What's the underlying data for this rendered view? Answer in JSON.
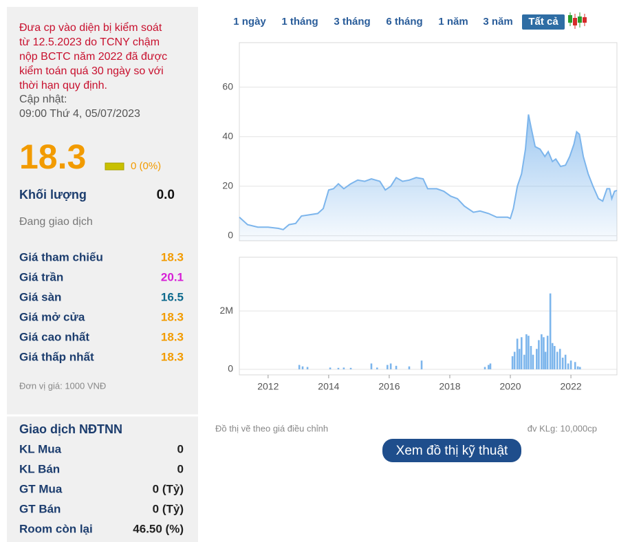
{
  "notice_lines": [
    "Đưa cp vào diện bị kiểm soát",
    "từ 12.5.2023 do TCNY chậm",
    "nộp BCTC năm 2022 đã được",
    "kiểm toán quá 30 ngày so với",
    "thời hạn quy định."
  ],
  "update_label": "Cập nhật:",
  "update_time": "09:00 Thứ 4, 05/07/2023",
  "price": "18.3",
  "change": "0 (0%)",
  "volume_label": "Khối lượng",
  "volume_value": "0.0",
  "status": "Đang giao dịch",
  "price_rows": [
    {
      "label": "Giá tham chiếu",
      "value": "18.3",
      "color": "#f29b00"
    },
    {
      "label": "Giá trần",
      "value": "20.1",
      "color": "#d61fd6"
    },
    {
      "label": "Giá sàn",
      "value": "16.5",
      "color": "#0e6a8e"
    },
    {
      "label": "Giá mở cửa",
      "value": "18.3",
      "color": "#f29b00"
    },
    {
      "label": "Giá cao nhất",
      "value": "18.3",
      "color": "#f29b00"
    },
    {
      "label": "Giá thấp nhất",
      "value": "18.3",
      "color": "#f29b00"
    }
  ],
  "unit_note": "Đơn vị giá: 1000 VNĐ",
  "foreign_title": "Giao dịch NĐTNN",
  "foreign_rows": [
    {
      "label": "KL Mua",
      "value": "0"
    },
    {
      "label": "KL Bán",
      "value": "0"
    },
    {
      "label": "GT Mua",
      "value": "0 (Tỷ)"
    },
    {
      "label": "GT Bán",
      "value": "0 (Tỷ)"
    },
    {
      "label": "Room còn lại",
      "value": "46.50 (%)"
    }
  ],
  "tabs": [
    "1 ngày",
    "1 tháng",
    "3 tháng",
    "6 tháng",
    "1 năm",
    "3 năm",
    "Tất cả"
  ],
  "selected_tab": 6,
  "chart_note": "Đồ thị vẽ theo giá điều chỉnh",
  "volume_unit_note": "đv KLg: 10,000cp",
  "button": "Xem đồ thị kỹ thuật",
  "chart_data": [
    {
      "type": "area",
      "color": "#7cb5ec",
      "grid": true,
      "xlim": [
        2011.05,
        2023.52
      ],
      "ylim": [
        -2,
        78
      ],
      "yticks": [
        0,
        20,
        40,
        60
      ],
      "x": [
        2011.05,
        2011.32,
        2011.66,
        2012.0,
        2012.34,
        2012.5,
        2012.69,
        2012.91,
        2013.1,
        2013.37,
        2013.64,
        2013.82,
        2014.0,
        2014.16,
        2014.32,
        2014.5,
        2014.73,
        2014.96,
        2015.19,
        2015.41,
        2015.69,
        2015.87,
        2016.05,
        2016.23,
        2016.44,
        2016.66,
        2016.89,
        2017.12,
        2017.27,
        2017.57,
        2017.8,
        2018.03,
        2018.25,
        2018.48,
        2018.78,
        2019.0,
        2019.28,
        2019.55,
        2019.91,
        2020.0,
        2020.1,
        2020.23,
        2020.37,
        2020.5,
        2020.6,
        2020.68,
        2020.82,
        2020.98,
        2021.14,
        2021.25,
        2021.39,
        2021.5,
        2021.66,
        2021.82,
        2021.96,
        2022.1,
        2022.19,
        2022.28,
        2022.41,
        2022.57,
        2022.73,
        2022.91,
        2023.05,
        2023.19,
        2023.28,
        2023.35,
        2023.44,
        2023.52
      ],
      "values": [
        7.5,
        4.5,
        3.5,
        3.5,
        3,
        2.5,
        4.5,
        5,
        8,
        8.5,
        9,
        11,
        18.5,
        19,
        21,
        19,
        21,
        22.5,
        22,
        23,
        22,
        18.5,
        20,
        23.5,
        22,
        22.5,
        23.5,
        23,
        19,
        19,
        18,
        16,
        15,
        12,
        9.5,
        10,
        9,
        7.5,
        7.5,
        7,
        11,
        20,
        25,
        35,
        49,
        44,
        36,
        35,
        32,
        34,
        30,
        31,
        28,
        28.5,
        32,
        37,
        42,
        41,
        32,
        25,
        20,
        15,
        14,
        19,
        19,
        15,
        18,
        18.3
      ]
    },
    {
      "type": "bar",
      "color": "#7cb5ec",
      "grid": true,
      "xlim": [
        2011.05,
        2023.52
      ],
      "xticks": [
        2012,
        2014,
        2016,
        2018,
        2020,
        2022
      ],
      "ylim": [
        -190000,
        3840000
      ],
      "yticks": [
        0,
        {
          "value": 2000000,
          "label": "2M"
        }
      ],
      "x": [
        2013.03,
        2013.14,
        2013.3,
        2014.05,
        2014.32,
        2014.5,
        2014.73,
        2015.41,
        2015.6,
        2015.94,
        2016.05,
        2016.23,
        2016.66,
        2017.07,
        2019.16,
        2019.28,
        2019.34,
        2020.07,
        2020.14,
        2020.23,
        2020.3,
        2020.37,
        2020.46,
        2020.53,
        2020.6,
        2020.68,
        2020.75,
        2020.87,
        2020.94,
        2021.03,
        2021.1,
        2021.16,
        2021.23,
        2021.32,
        2021.39,
        2021.46,
        2021.55,
        2021.64,
        2021.73,
        2021.82,
        2021.91,
        2022.0,
        2022.14,
        2022.23,
        2022.3
      ],
      "values": [
        150000,
        100000,
        80000,
        60000,
        50000,
        60000,
        50000,
        200000,
        60000,
        150000,
        200000,
        120000,
        100000,
        300000,
        80000,
        150000,
        200000,
        450000,
        600000,
        1050000,
        700000,
        1100000,
        500000,
        1200000,
        1150000,
        800000,
        500000,
        700000,
        1000000,
        1200000,
        1100000,
        600000,
        1150000,
        2600000,
        900000,
        800000,
        600000,
        700000,
        400000,
        500000,
        200000,
        300000,
        250000,
        100000,
        80000
      ]
    }
  ]
}
